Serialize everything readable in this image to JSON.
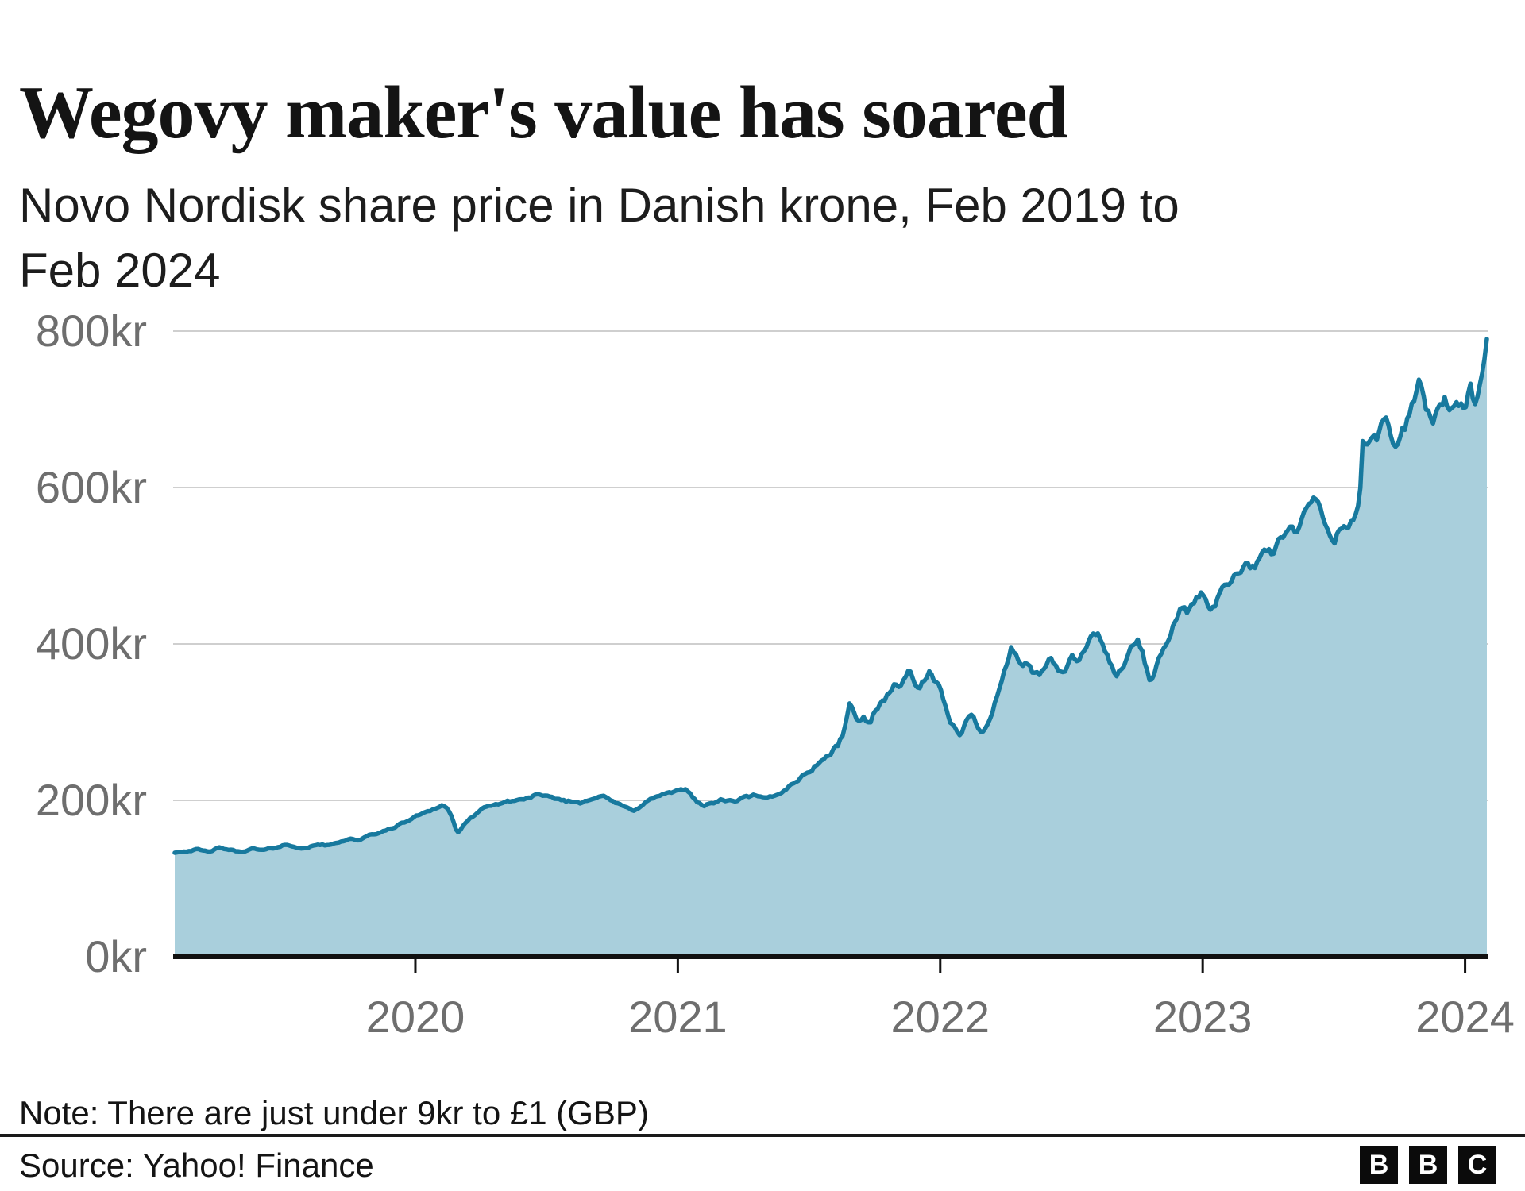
{
  "header": {
    "title": "Wegovy maker's value has soared",
    "subtitle": "Novo Nordisk share price in Danish krone, Feb 2019 to\nFeb 2024"
  },
  "footer": {
    "note": "Note: There are just under 9kr to £1 (GBP)",
    "source": "Source: Yahoo! Finance",
    "logo_letters": [
      "B",
      "B",
      "C"
    ]
  },
  "chart_data": {
    "type": "area",
    "title": "Wegovy maker's value has soared",
    "subtitle": "Novo Nordisk share price in Danish krone, Feb 2019 to Feb 2024",
    "series_name": "Novo Nordisk share price",
    "unit": "Danish krone (kr)",
    "xlabel": "",
    "ylabel": "Share price (kr)",
    "xlim": [
      2019.083,
      2024.083
    ],
    "ylim": [
      0,
      800
    ],
    "grid": true,
    "legend": "none",
    "y_ticks": [
      {
        "value": 0,
        "label": "0kr"
      },
      {
        "value": 200,
        "label": "200kr"
      },
      {
        "value": 400,
        "label": "400kr"
      },
      {
        "value": 600,
        "label": "600kr"
      },
      {
        "value": 800,
        "label": "800kr"
      }
    ],
    "x_ticks": [
      {
        "value": 2020,
        "label": "2020"
      },
      {
        "value": 2021,
        "label": "2021"
      },
      {
        "value": 2022,
        "label": "2022"
      },
      {
        "value": 2023,
        "label": "2023"
      },
      {
        "value": 2024,
        "label": "2024"
      }
    ],
    "colors": {
      "line": "#17799e",
      "fill": "#a9cfdc",
      "grid": "#cfcfcf",
      "axis": "#111111",
      "tick_label": "#6e6e6e"
    },
    "points": [
      [
        2019.083,
        133
      ],
      [
        2019.12,
        135
      ],
      [
        2019.17,
        137
      ],
      [
        2019.21,
        134
      ],
      [
        2019.25,
        139
      ],
      [
        2019.29,
        137
      ],
      [
        2019.33,
        134
      ],
      [
        2019.38,
        138
      ],
      [
        2019.42,
        136
      ],
      [
        2019.46,
        139
      ],
      [
        2019.5,
        143
      ],
      [
        2019.54,
        141
      ],
      [
        2019.58,
        138
      ],
      [
        2019.63,
        144
      ],
      [
        2019.67,
        142
      ],
      [
        2019.71,
        147
      ],
      [
        2019.75,
        151
      ],
      [
        2019.79,
        149
      ],
      [
        2019.83,
        156
      ],
      [
        2019.88,
        160
      ],
      [
        2019.92,
        166
      ],
      [
        2019.96,
        172
      ],
      [
        2020.0,
        179
      ],
      [
        2020.04,
        186
      ],
      [
        2020.08,
        190
      ],
      [
        2020.1,
        194
      ],
      [
        2020.12,
        190
      ],
      [
        2020.14,
        179
      ],
      [
        2020.16,
        157
      ],
      [
        2020.18,
        166
      ],
      [
        2020.2,
        173
      ],
      [
        2020.22,
        180
      ],
      [
        2020.25,
        188
      ],
      [
        2020.29,
        193
      ],
      [
        2020.33,
        197
      ],
      [
        2020.38,
        200
      ],
      [
        2020.42,
        202
      ],
      [
        2020.46,
        207
      ],
      [
        2020.5,
        204
      ],
      [
        2020.54,
        202
      ],
      [
        2020.58,
        199
      ],
      [
        2020.63,
        197
      ],
      [
        2020.67,
        203
      ],
      [
        2020.71,
        206
      ],
      [
        2020.75,
        199
      ],
      [
        2020.79,
        192
      ],
      [
        2020.83,
        187
      ],
      [
        2020.88,
        198
      ],
      [
        2020.92,
        205
      ],
      [
        2020.96,
        209
      ],
      [
        2021.0,
        211
      ],
      [
        2021.03,
        214
      ],
      [
        2021.06,
        204
      ],
      [
        2021.08,
        197
      ],
      [
        2021.1,
        193
      ],
      [
        2021.13,
        196
      ],
      [
        2021.17,
        201
      ],
      [
        2021.21,
        198
      ],
      [
        2021.25,
        203
      ],
      [
        2021.29,
        206
      ],
      [
        2021.33,
        202
      ],
      [
        2021.38,
        207
      ],
      [
        2021.42,
        217
      ],
      [
        2021.46,
        227
      ],
      [
        2021.5,
        237
      ],
      [
        2021.54,
        249
      ],
      [
        2021.58,
        259
      ],
      [
        2021.61,
        271
      ],
      [
        2021.63,
        285
      ],
      [
        2021.645,
        310
      ],
      [
        2021.655,
        323
      ],
      [
        2021.67,
        312
      ],
      [
        2021.69,
        301
      ],
      [
        2021.71,
        305
      ],
      [
        2021.73,
        298
      ],
      [
        2021.75,
        315
      ],
      [
        2021.77,
        322
      ],
      [
        2021.79,
        330
      ],
      [
        2021.81,
        341
      ],
      [
        2021.83,
        351
      ],
      [
        2021.85,
        344
      ],
      [
        2021.87,
        358
      ],
      [
        2021.88,
        367
      ],
      [
        2021.9,
        354
      ],
      [
        2021.92,
        342
      ],
      [
        2021.94,
        353
      ],
      [
        2021.96,
        364
      ],
      [
        2021.98,
        351
      ],
      [
        2022.0,
        341
      ],
      [
        2022.02,
        316
      ],
      [
        2022.04,
        299
      ],
      [
        2022.06,
        291
      ],
      [
        2022.08,
        285
      ],
      [
        2022.1,
        301
      ],
      [
        2022.12,
        309
      ],
      [
        2022.14,
        297
      ],
      [
        2022.16,
        287
      ],
      [
        2022.18,
        299
      ],
      [
        2022.2,
        318
      ],
      [
        2022.22,
        338
      ],
      [
        2022.24,
        360
      ],
      [
        2022.26,
        380
      ],
      [
        2022.27,
        393
      ],
      [
        2022.29,
        386
      ],
      [
        2022.31,
        373
      ],
      [
        2022.33,
        379
      ],
      [
        2022.35,
        363
      ],
      [
        2022.38,
        357
      ],
      [
        2022.4,
        371
      ],
      [
        2022.42,
        381
      ],
      [
        2022.44,
        373
      ],
      [
        2022.46,
        361
      ],
      [
        2022.48,
        369
      ],
      [
        2022.5,
        382
      ],
      [
        2022.52,
        375
      ],
      [
        2022.54,
        386
      ],
      [
        2022.56,
        398
      ],
      [
        2022.58,
        409
      ],
      [
        2022.6,
        413
      ],
      [
        2022.62,
        403
      ],
      [
        2022.64,
        384
      ],
      [
        2022.66,
        366
      ],
      [
        2022.67,
        356
      ],
      [
        2022.69,
        369
      ],
      [
        2022.71,
        382
      ],
      [
        2022.73,
        396
      ],
      [
        2022.75,
        404
      ],
      [
        2022.77,
        389
      ],
      [
        2022.79,
        362
      ],
      [
        2022.8,
        351
      ],
      [
        2022.82,
        367
      ],
      [
        2022.84,
        386
      ],
      [
        2022.86,
        399
      ],
      [
        2022.88,
        419
      ],
      [
        2022.9,
        431
      ],
      [
        2022.92,
        446
      ],
      [
        2022.94,
        441
      ],
      [
        2022.96,
        453
      ],
      [
        2022.98,
        459
      ],
      [
        2023.0,
        463
      ],
      [
        2023.02,
        451
      ],
      [
        2023.04,
        447
      ],
      [
        2023.06,
        459
      ],
      [
        2023.08,
        474
      ],
      [
        2023.1,
        481
      ],
      [
        2023.13,
        491
      ],
      [
        2023.15,
        499
      ],
      [
        2023.17,
        506
      ],
      [
        2023.19,
        499
      ],
      [
        2023.21,
        503
      ],
      [
        2023.23,
        513
      ],
      [
        2023.25,
        521
      ],
      [
        2023.27,
        516
      ],
      [
        2023.29,
        533
      ],
      [
        2023.31,
        540
      ],
      [
        2023.33,
        546
      ],
      [
        2023.35,
        541
      ],
      [
        2023.38,
        559
      ],
      [
        2023.4,
        573
      ],
      [
        2023.42,
        585
      ],
      [
        2023.44,
        576
      ],
      [
        2023.46,
        559
      ],
      [
        2023.48,
        541
      ],
      [
        2023.5,
        531
      ],
      [
        2023.52,
        545
      ],
      [
        2023.54,
        553
      ],
      [
        2023.56,
        549
      ],
      [
        2023.58,
        561
      ],
      [
        2023.59,
        575
      ],
      [
        2023.6,
        593
      ],
      [
        2023.61,
        662
      ],
      [
        2023.62,
        655
      ],
      [
        2023.64,
        668
      ],
      [
        2023.66,
        659
      ],
      [
        2023.68,
        676
      ],
      [
        2023.7,
        689
      ],
      [
        2023.72,
        662
      ],
      [
        2023.73,
        646
      ],
      [
        2023.75,
        663
      ],
      [
        2023.77,
        677
      ],
      [
        2023.79,
        701
      ],
      [
        2023.81,
        719
      ],
      [
        2023.83,
        737
      ],
      [
        2023.845,
        706
      ],
      [
        2023.86,
        693
      ],
      [
        2023.88,
        687
      ],
      [
        2023.9,
        706
      ],
      [
        2023.92,
        713
      ],
      [
        2023.94,
        703
      ],
      [
        2023.96,
        697
      ],
      [
        2023.98,
        703
      ],
      [
        2024.0,
        695
      ],
      [
        2024.01,
        711
      ],
      [
        2024.02,
        723
      ],
      [
        2024.03,
        709
      ],
      [
        2024.04,
        703
      ],
      [
        2024.05,
        727
      ],
      [
        2024.06,
        739
      ],
      [
        2024.07,
        753
      ],
      [
        2024.083,
        790
      ]
    ]
  },
  "render_hints": {
    "noise_seed": 42,
    "noise_amp_early": 0.006,
    "noise_amp_mid": 0.007,
    "noise_amp_late": 0.01,
    "steps": 560
  }
}
